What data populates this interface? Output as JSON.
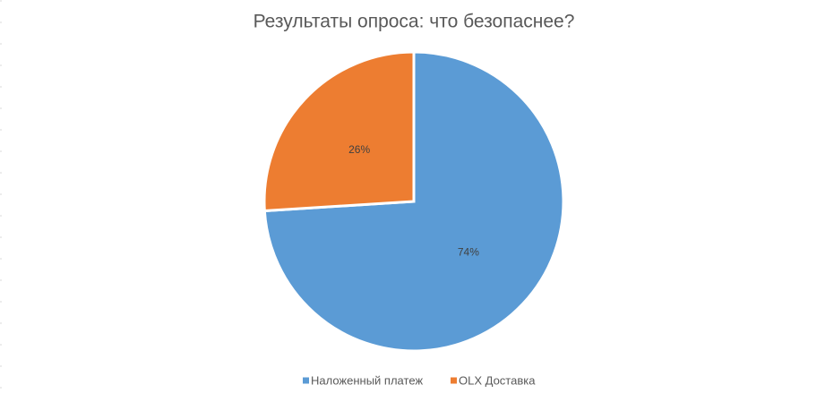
{
  "chart_data": {
    "type": "pie",
    "title": "Результаты опроса: что безопаснее?",
    "categories": [
      "Наложенный платеж",
      "OLX Доставка"
    ],
    "values": [
      74,
      26
    ],
    "value_labels": [
      "74%",
      "26%"
    ],
    "colors": [
      "#5b9bd5",
      "#ed7d31"
    ],
    "legend": "bottom"
  }
}
